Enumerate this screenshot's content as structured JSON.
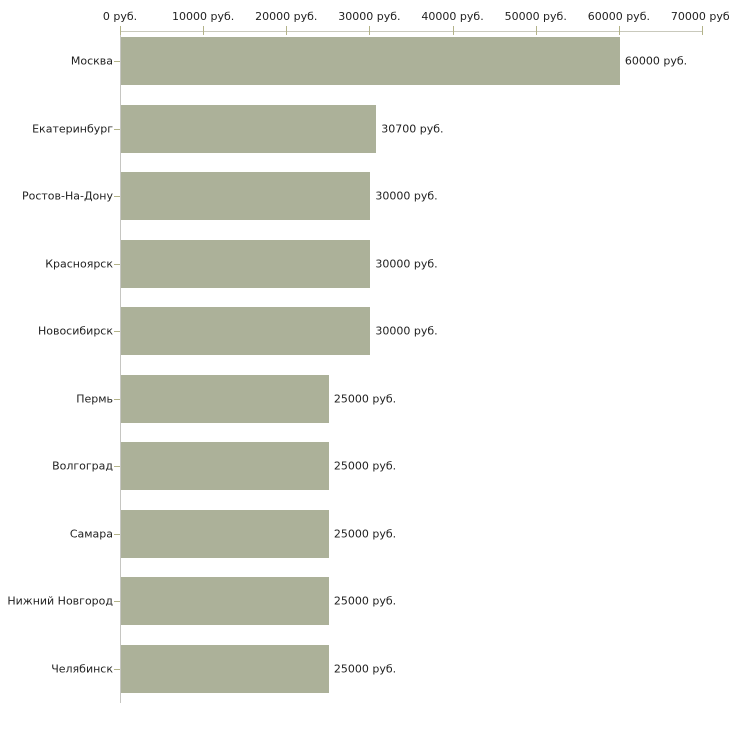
{
  "chart_data": {
    "type": "bar",
    "orientation": "horizontal",
    "title": "",
    "xlabel": "",
    "ylabel": "",
    "categories": [
      "Москва",
      "Екатеринбург",
      "Ростов-На-Дону",
      "Красноярск",
      "Новосибирск",
      "Пермь",
      "Волгоград",
      "Самара",
      "Нижний Новгород",
      "Челябинск"
    ],
    "values": [
      60000,
      30700,
      30000,
      30000,
      30000,
      25000,
      25000,
      25000,
      25000,
      25000
    ],
    "value_labels": [
      "60000 руб.",
      "30700 руб.",
      "30000 руб.",
      "30000 руб.",
      "30000 руб.",
      "25000 руб.",
      "25000 руб.",
      "25000 руб.",
      "25000 руб.",
      "25000 руб."
    ],
    "x_tick_values": [
      0,
      10000,
      20000,
      30000,
      40000,
      50000,
      60000,
      70000
    ],
    "x_tick_labels": [
      "0 руб.",
      "10000 руб.",
      "20000 руб.",
      "30000 руб.",
      "40000 руб.",
      "50000 руб.",
      "60000 руб.",
      "70000 руб."
    ],
    "xlim": [
      0,
      70000
    ],
    "grid": false,
    "legend": "none",
    "colors": {
      "bar": "#acb199",
      "axis_line": "#c9c9bc",
      "tick": "#b3b389",
      "text": "#222222",
      "background": "#ffffff"
    }
  }
}
